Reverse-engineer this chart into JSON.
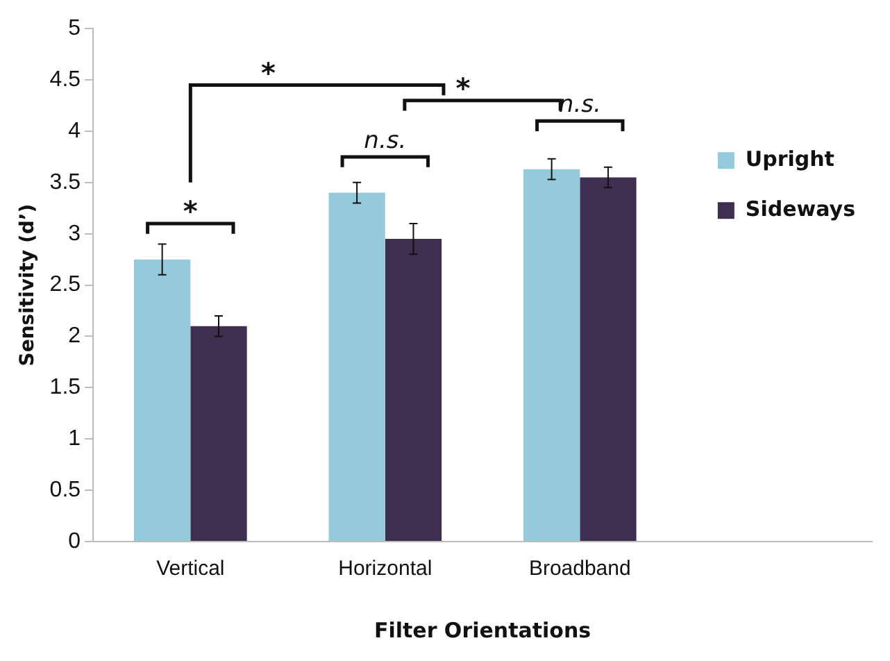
{
  "chart_data": {
    "type": "bar",
    "xlabel": "Filter Orientations",
    "ylabel": "Sensitivity (d’)",
    "categories": [
      "Vertical",
      "Horizontal",
      "Broadband",
      null
    ],
    "series": [
      {
        "name": "Upright",
        "color": "#94cadc",
        "values": [
          2.75,
          3.4,
          3.63,
          null
        ],
        "errors": [
          0.15,
          0.1,
          0.1,
          null
        ]
      },
      {
        "name": "Sideways",
        "color": "#3e2f50",
        "values": [
          2.1,
          2.95,
          3.55,
          null
        ],
        "errors": [
          0.1,
          0.15,
          0.1,
          null
        ]
      }
    ],
    "ylim": [
      0,
      5
    ],
    "yticks": [
      0,
      0.5,
      1,
      1.5,
      2,
      2.5,
      3,
      3.5,
      4,
      4.5,
      5
    ],
    "grid": false,
    "legend": "top right",
    "annotations": [
      "*",
      "n.s.",
      "n.s.",
      "*",
      "*"
    ]
  }
}
